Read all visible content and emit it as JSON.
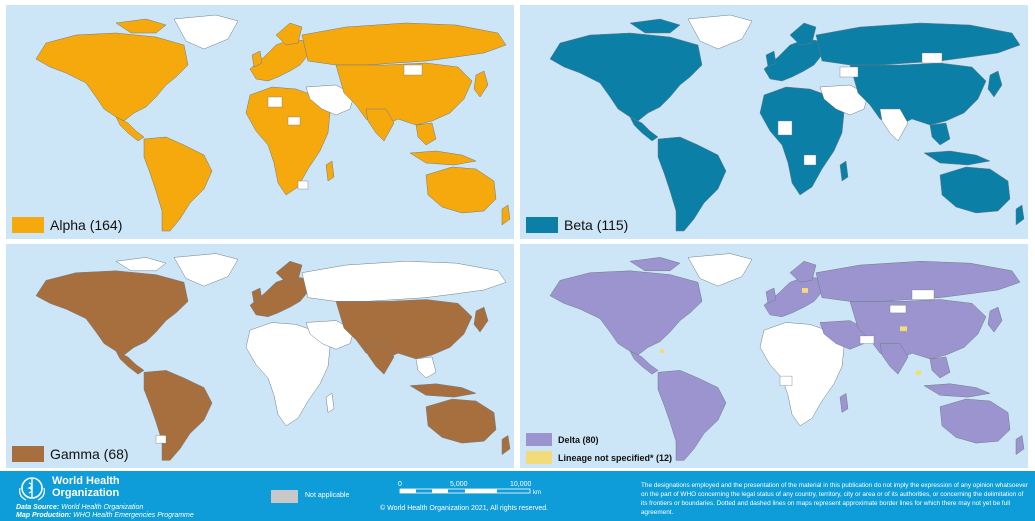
{
  "colors": {
    "ocean": "#cde6f7",
    "alpha": "#f5a90d",
    "beta": "#0b7fa6",
    "gamma": "#a86f3e",
    "delta": "#9b94cf",
    "lineage": "#f2dc7a",
    "not_reported": "#ffffff",
    "not_applicable": "#c8c8c8",
    "footer": "#0f9dd9"
  },
  "panels": {
    "alpha": {
      "label": "Alpha (164)"
    },
    "beta": {
      "label": "Beta (115)"
    },
    "gamma": {
      "label": "Gamma (68)"
    },
    "delta": {
      "label": "Delta (80)",
      "label_2": "Lineage not specified* (12)"
    }
  },
  "footer": {
    "org_line1": "World Health",
    "org_line2": "Organization",
    "data_source_label": "Data Source:",
    "data_source": "World Health Organization",
    "map_production_label": "Map Production:",
    "map_production": "WHO Health Emergencies Programme",
    "not_applicable": "Not applicable",
    "scale_0": "0",
    "scale_1": "5,000",
    "scale_2": "10,000",
    "scale_unit": "km",
    "copyright": "© World Health Organization 2021, All rights reserved.",
    "disclaimer": "The designations employed and the presentation of the material in this publication do not imply the expression of any opinion whatsoever on the part of WHO concerning the legal status of any country, territory, city or area or of its authorities, or concerning the delimitation of its frontiers or boundaries. Dotted and dashed lines on maps represent approximate border lines for which there may not yet be full agreement."
  }
}
